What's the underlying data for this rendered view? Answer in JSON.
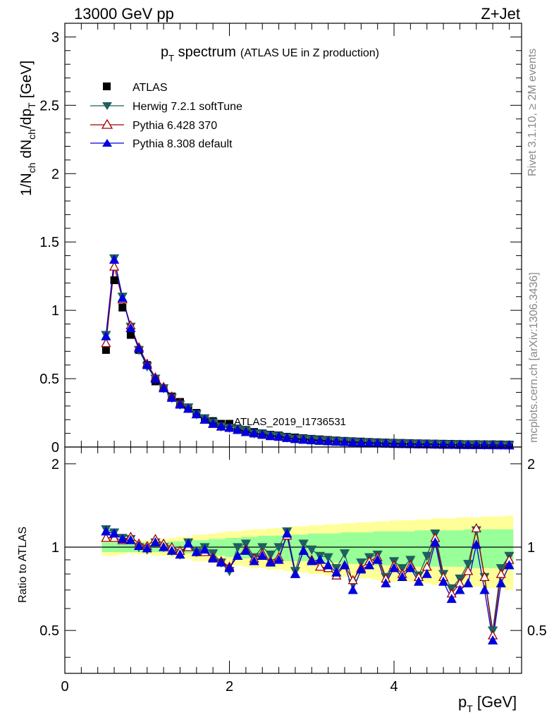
{
  "header": {
    "energy_label": "13000 GeV pp",
    "process_label": "Z+Jet"
  },
  "side_labels": {
    "rivet": "Rivet 3.1.10, ≥ 2M events",
    "mcplots": "mcplots.cern.ch [arXiv:1306.3436]"
  },
  "watermark": "ATLAS_2019_I1736531",
  "colors": {
    "atlas": "#000000",
    "herwig": "#1f5f5f",
    "pythia6": "#a00000",
    "pythia8": "#0000dd",
    "band_outer": "#ffff99",
    "band_inner": "#99ff99"
  },
  "chart_data": [
    {
      "type": "scatter",
      "title_main": "p",
      "title_sub": "T",
      "title_rest": " spectrum",
      "title_small": "(ATLAS UE in Z production)",
      "ylabel": "1/N",
      "ylabel_parts": [
        "1/N",
        "ch",
        " dN",
        "ch",
        "/dp",
        "T",
        " [GeV]"
      ],
      "xlim": [
        0,
        5.55
      ],
      "ylim": [
        0,
        3.1
      ],
      "y_ticks": [
        0,
        0.5,
        1,
        1.5,
        2,
        2.5,
        3
      ],
      "y_tick_labels": [
        "0",
        "0.5",
        "1",
        "1.5",
        "2",
        "2.5",
        "3"
      ],
      "x": [
        0.5,
        0.6,
        0.7,
        0.8,
        0.9,
        1.0,
        1.1,
        1.2,
        1.3,
        1.4,
        1.5,
        1.6,
        1.7,
        1.8,
        1.9,
        2.0,
        2.1,
        2.2,
        2.3,
        2.4,
        2.5,
        2.6,
        2.7,
        2.8,
        2.9,
        3.0,
        3.1,
        3.2,
        3.3,
        3.4,
        3.5,
        3.6,
        3.7,
        3.8,
        3.9,
        4.0,
        4.1,
        4.2,
        4.3,
        4.4,
        4.5,
        4.6,
        4.7,
        4.8,
        4.9,
        5.0,
        5.1,
        5.2,
        5.3,
        5.4
      ],
      "series": [
        {
          "name": "ATLAS",
          "marker": "square",
          "values": [
            0.71,
            1.22,
            1.02,
            0.82,
            0.71,
            0.6,
            0.48,
            0.43,
            0.37,
            0.33,
            0.28,
            0.25,
            0.21,
            0.19,
            0.17,
            0.17,
            0.135,
            0.125,
            0.11,
            0.1,
            0.09,
            0.085,
            0.075,
            0.07,
            0.065,
            0.06,
            0.056,
            0.052,
            0.048,
            0.045,
            0.042,
            0.04,
            0.037,
            0.035,
            0.033,
            0.031,
            0.03,
            0.028,
            0.027,
            0.026,
            0.025,
            0.024,
            0.023,
            0.022,
            0.021,
            0.021,
            0.02,
            0.02,
            0.019,
            0.018
          ]
        },
        {
          "name": "Herwig 7.2.1 softTune",
          "marker": "triangle-down",
          "values": [
            0.82,
            1.38,
            1.1,
            0.88,
            0.71,
            0.59,
            0.5,
            0.43,
            0.36,
            0.31,
            0.29,
            0.24,
            0.21,
            0.18,
            0.15,
            0.14,
            0.13,
            0.12,
            0.1,
            0.095,
            0.085,
            0.08,
            0.07,
            0.06,
            0.06,
            0.055,
            0.05,
            0.047,
            0.044,
            0.041,
            0.038,
            0.035,
            0.033,
            0.031,
            0.029,
            0.027,
            0.026,
            0.024,
            0.023,
            0.022,
            0.021,
            0.02,
            0.019,
            0.018,
            0.018,
            0.017,
            0.016,
            0.016,
            0.015,
            0.015
          ]
        },
        {
          "name": "Pythia 6.428 370",
          "marker": "triangle-up-open",
          "values": [
            0.76,
            1.32,
            1.08,
            0.89,
            0.73,
            0.61,
            0.51,
            0.44,
            0.37,
            0.32,
            0.28,
            0.24,
            0.2,
            0.17,
            0.15,
            0.14,
            0.125,
            0.11,
            0.1,
            0.09,
            0.08,
            0.075,
            0.068,
            0.06,
            0.055,
            0.05,
            0.047,
            0.043,
            0.04,
            0.037,
            0.034,
            0.032,
            0.03,
            0.028,
            0.026,
            0.024,
            0.023,
            0.022,
            0.02,
            0.019,
            0.018,
            0.017,
            0.017,
            0.016,
            0.015,
            0.015,
            0.014,
            0.014,
            0.013,
            0.013
          ]
        },
        {
          "name": "Pythia 8.308 default",
          "marker": "triangle-up",
          "values": [
            0.81,
            1.37,
            1.09,
            0.87,
            0.72,
            0.6,
            0.5,
            0.43,
            0.36,
            0.31,
            0.28,
            0.24,
            0.2,
            0.17,
            0.15,
            0.14,
            0.125,
            0.11,
            0.1,
            0.09,
            0.08,
            0.075,
            0.066,
            0.058,
            0.053,
            0.049,
            0.045,
            0.042,
            0.039,
            0.036,
            0.033,
            0.031,
            0.029,
            0.027,
            0.025,
            0.023,
            0.022,
            0.021,
            0.02,
            0.019,
            0.018,
            0.017,
            0.016,
            0.015,
            0.015,
            0.014,
            0.014,
            0.013,
            0.013,
            0.012
          ]
        }
      ]
    },
    {
      "type": "line",
      "ylabel": "Ratio to ATLAS",
      "xlabel_main": "p",
      "xlabel_sub": "T",
      "xlabel_rest": " [GeV]",
      "xlim": [
        0,
        5.55
      ],
      "ylim": [
        0.35,
        2.3
      ],
      "x_ticks": [
        0,
        2,
        4
      ],
      "x_tick_labels": [
        "0",
        "2",
        "4"
      ],
      "y_ticks": [
        0.5,
        1,
        2
      ],
      "y_tick_labels": [
        "0.5",
        "1",
        "2"
      ],
      "reference_line": 1,
      "x": [
        0.5,
        0.6,
        0.7,
        0.8,
        0.9,
        1.0,
        1.1,
        1.2,
        1.3,
        1.4,
        1.5,
        1.6,
        1.7,
        1.8,
        1.9,
        2.0,
        2.1,
        2.2,
        2.3,
        2.4,
        2.5,
        2.6,
        2.7,
        2.8,
        2.9,
        3.0,
        3.1,
        3.2,
        3.3,
        3.4,
        3.5,
        3.6,
        3.7,
        3.8,
        3.9,
        4.0,
        4.1,
        4.2,
        4.3,
        4.4,
        4.5,
        4.6,
        4.7,
        4.8,
        4.9,
        5.0,
        5.1,
        5.2,
        5.3,
        5.4
      ],
      "band_inner": {
        "low": [
          0.96,
          0.96,
          0.96,
          0.96,
          0.96,
          0.96,
          0.96,
          0.96,
          0.95,
          0.95,
          0.95,
          0.94,
          0.94,
          0.93,
          0.93,
          0.92,
          0.92,
          0.91,
          0.91,
          0.9,
          0.9,
          0.9,
          0.89,
          0.89,
          0.89,
          0.88,
          0.88,
          0.88,
          0.88,
          0.87,
          0.87,
          0.87,
          0.87,
          0.86,
          0.86,
          0.86,
          0.86,
          0.86,
          0.85,
          0.85,
          0.85,
          0.85,
          0.85,
          0.85,
          0.84,
          0.84,
          0.84,
          0.84,
          0.84,
          0.84
        ],
        "high": [
          1.04,
          1.04,
          1.04,
          1.04,
          1.04,
          1.04,
          1.04,
          1.04,
          1.05,
          1.05,
          1.05,
          1.06,
          1.06,
          1.07,
          1.07,
          1.08,
          1.08,
          1.09,
          1.09,
          1.1,
          1.1,
          1.1,
          1.11,
          1.11,
          1.11,
          1.12,
          1.12,
          1.12,
          1.12,
          1.13,
          1.13,
          1.13,
          1.13,
          1.14,
          1.14,
          1.14,
          1.14,
          1.14,
          1.15,
          1.15,
          1.15,
          1.15,
          1.15,
          1.15,
          1.16,
          1.16,
          1.16,
          1.16,
          1.16,
          1.16
        ]
      },
      "band_outer": {
        "low": [
          0.93,
          0.93,
          0.94,
          0.95,
          0.94,
          0.94,
          0.93,
          0.93,
          0.92,
          0.91,
          0.91,
          0.89,
          0.89,
          0.88,
          0.87,
          0.86,
          0.86,
          0.85,
          0.84,
          0.84,
          0.83,
          0.83,
          0.82,
          0.81,
          0.81,
          0.8,
          0.8,
          0.79,
          0.79,
          0.78,
          0.78,
          0.77,
          0.77,
          0.76,
          0.76,
          0.75,
          0.75,
          0.75,
          0.74,
          0.74,
          0.73,
          0.73,
          0.73,
          0.72,
          0.72,
          0.72,
          0.71,
          0.71,
          0.71,
          0.7
        ],
        "high": [
          1.07,
          1.07,
          1.06,
          1.05,
          1.06,
          1.06,
          1.07,
          1.07,
          1.08,
          1.09,
          1.09,
          1.11,
          1.11,
          1.12,
          1.13,
          1.14,
          1.14,
          1.15,
          1.16,
          1.16,
          1.17,
          1.17,
          1.18,
          1.19,
          1.19,
          1.2,
          1.2,
          1.21,
          1.21,
          1.22,
          1.22,
          1.23,
          1.23,
          1.24,
          1.24,
          1.25,
          1.25,
          1.25,
          1.26,
          1.26,
          1.27,
          1.27,
          1.27,
          1.28,
          1.28,
          1.28,
          1.29,
          1.29,
          1.29,
          1.3
        ]
      },
      "series": [
        {
          "name": "Herwig 7.2.1 softTune",
          "values": [
            1.16,
            1.13,
            1.08,
            1.07,
            1.0,
            0.98,
            1.04,
            1.0,
            0.97,
            0.94,
            1.04,
            0.96,
            1.0,
            0.95,
            0.88,
            0.82,
            1.0,
            1.03,
            0.92,
            1.0,
            0.94,
            1.0,
            1.14,
            0.82,
            1.03,
            0.98,
            0.93,
            0.92,
            0.84,
            0.95,
            0.74,
            0.88,
            0.92,
            0.94,
            0.78,
            0.89,
            0.84,
            0.9,
            0.79,
            0.93,
            1.12,
            0.8,
            0.71,
            0.77,
            0.87,
            1.15,
            0.78,
            0.5,
            0.84,
            0.93
          ]
        },
        {
          "name": "Pythia 6.428 370",
          "values": [
            1.08,
            1.08,
            1.06,
            1.09,
            1.03,
            1.01,
            1.07,
            1.03,
            1.0,
            0.97,
            1.0,
            0.96,
            0.96,
            0.92,
            0.89,
            0.85,
            0.93,
            0.98,
            0.91,
            0.95,
            0.89,
            0.92,
            1.1,
            0.8,
            0.97,
            0.9,
            0.85,
            0.84,
            0.79,
            0.86,
            0.76,
            0.84,
            0.89,
            0.92,
            0.77,
            0.86,
            0.8,
            0.86,
            0.78,
            0.85,
            1.08,
            0.78,
            0.68,
            0.74,
            0.82,
            1.17,
            0.78,
            0.48,
            0.8,
            0.9
          ]
        },
        {
          "name": "Pythia 8.308 default",
          "values": [
            1.14,
            1.12,
            1.07,
            1.06,
            1.01,
            0.99,
            1.04,
            1.0,
            0.97,
            0.94,
            1.03,
            0.96,
            0.98,
            0.91,
            0.88,
            0.84,
            0.93,
            0.97,
            0.89,
            0.93,
            0.88,
            0.9,
            1.12,
            0.8,
            0.97,
            0.89,
            0.9,
            0.86,
            0.81,
            0.86,
            0.7,
            0.83,
            0.86,
            0.9,
            0.74,
            0.84,
            0.78,
            0.84,
            0.75,
            0.8,
            1.04,
            0.75,
            0.65,
            0.7,
            0.74,
            1.02,
            0.7,
            0.46,
            0.74,
            0.86
          ]
        }
      ]
    }
  ]
}
